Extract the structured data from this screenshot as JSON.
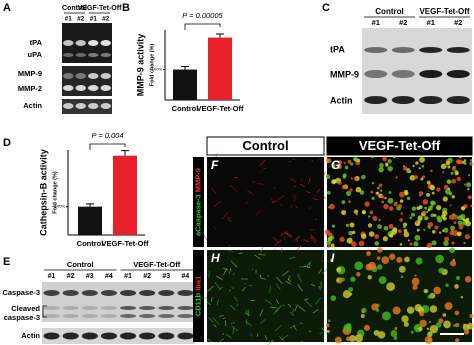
{
  "panels": {
    "A": {
      "label": "A",
      "groups": [
        "Control",
        "VEGF-Tet-Off"
      ],
      "lanes": [
        "#1",
        "#2",
        "#1",
        "#2"
      ],
      "rows": [
        "tPA",
        "uPA",
        "MMP-9",
        "MMP-2",
        "Actin"
      ]
    },
    "C": {
      "label": "C",
      "groups": [
        "Control",
        "VEGF-Tet-Off"
      ],
      "lanes": [
        "#1",
        "#2",
        "#1",
        "#2"
      ],
      "rows": [
        "tPA",
        "MMP-9",
        "Actin"
      ]
    },
    "E": {
      "label": "E",
      "groups": [
        "Control",
        "VEGF-Tet-Off"
      ],
      "lanes": [
        "#1",
        "#2",
        "#3",
        "#4",
        "#1",
        "#2",
        "#3",
        "#4"
      ],
      "rows": [
        "Caspase-3",
        "Cleaved",
        "caspase-3",
        "Actin"
      ]
    },
    "micrographs": {
      "headers": [
        "Control",
        "VEGF-Tet-Off"
      ],
      "labels": [
        "F",
        "G",
        "H",
        "I"
      ],
      "row_labels": [
        [
          "aCaspase-3",
          "MMP-9"
        ],
        [
          "CD11b",
          "Iba1"
        ]
      ]
    }
  },
  "chart_data": [
    {
      "type": "bar",
      "label": "B",
      "ylabel": "MMP-9 activity",
      "ylabel2": "Fold change (%)",
      "annotation": "P = 0.00005",
      "categories": [
        "Control",
        "VEGF-Tet-Off"
      ],
      "values": [
        100,
        205
      ],
      "errors": [
        10,
        12
      ],
      "colors": [
        "#111111",
        "#e8202a"
      ],
      "ylim": [
        0,
        230
      ],
      "yticks": [
        {
          "value": 100,
          "label": "100%"
        }
      ]
    },
    {
      "type": "bar",
      "label": "D",
      "ylabel": "Cathepsin-B activity",
      "ylabel2": "Fold change (%)",
      "annotation": "P = 0.004",
      "categories": [
        "Control",
        "VEGF-Tet-Off"
      ],
      "values": [
        100,
        280
      ],
      "errors": [
        10,
        18
      ],
      "colors": [
        "#111111",
        "#e8202a"
      ],
      "ylim": [
        0,
        300
      ],
      "yticks": [
        {
          "value": 100,
          "label": "100%"
        }
      ]
    }
  ]
}
